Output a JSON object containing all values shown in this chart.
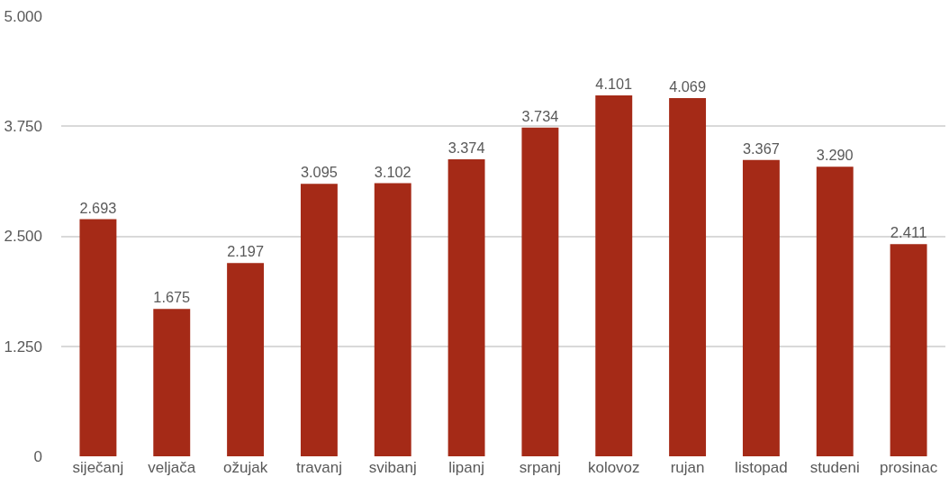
{
  "chart_data": {
    "type": "bar",
    "categories": [
      "siječanj",
      "veljača",
      "ožujak",
      "travanj",
      "svibanj",
      "lipanj",
      "srpanj",
      "kolovoz",
      "rujan",
      "listopad",
      "studeni",
      "prosinac"
    ],
    "values": [
      2693,
      1675,
      2197,
      3095,
      3102,
      3374,
      3734,
      4101,
      4069,
      3367,
      3290,
      2411
    ],
    "value_labels": [
      "2.693",
      "1.675",
      "2.197",
      "3.095",
      "3.102",
      "3.374",
      "3.734",
      "4.101",
      "4.069",
      "3.367",
      "3.290",
      "2.411"
    ],
    "color": "#a52a17",
    "ylim": [
      0,
      5000
    ],
    "yticks": [
      0,
      {
        "value": 1250,
        "label": "1.250"
      },
      {
        "value": 2500,
        "label": "2.500"
      },
      {
        "value": 3750,
        "label": "3.750"
      },
      {
        "value": 5000,
        "label": "5.000"
      }
    ],
    "grid": "y",
    "legend": false
  }
}
